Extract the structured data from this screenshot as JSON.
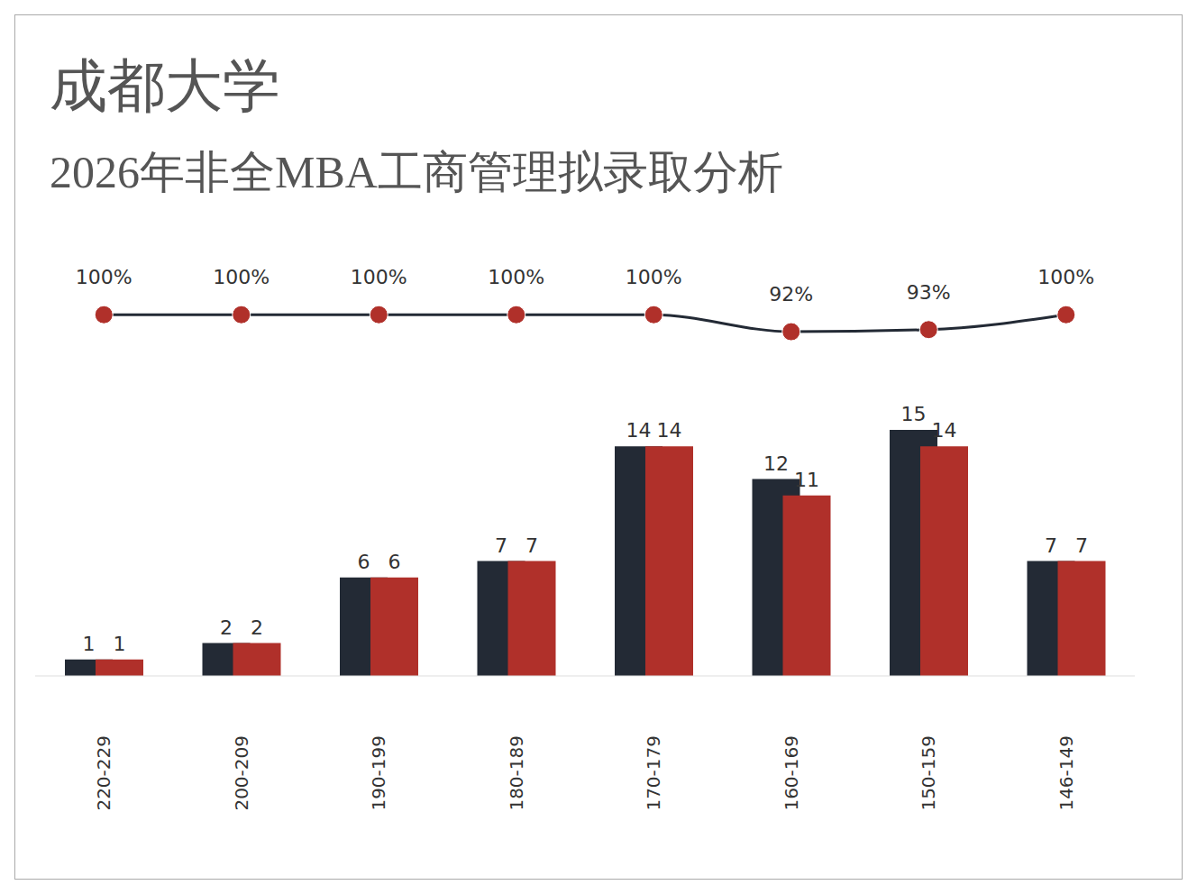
{
  "chart_data": {
    "type": "bar",
    "title": "成都大学",
    "subtitle": "2026年非全MBA工商管理拟录取分析",
    "categories": [
      "220-229",
      "200-209",
      "190-199",
      "180-189",
      "170-179",
      "160-169",
      "150-159",
      "146-149"
    ],
    "series": [
      {
        "type": "bar",
        "color": "#232a35",
        "values": [
          1,
          2,
          6,
          7,
          14,
          12,
          15,
          7
        ]
      },
      {
        "type": "bar",
        "color": "#b0302a",
        "values": [
          1,
          2,
          6,
          7,
          14,
          11,
          14,
          7
        ]
      },
      {
        "type": "line",
        "axis": "y2",
        "color": "#232a35",
        "marker": "circle",
        "values": [
          100,
          100,
          100,
          100,
          100,
          92,
          93,
          100
        ],
        "value_labels": [
          "100%",
          "100%",
          "100%",
          "100%",
          "100%",
          "92%",
          "93%",
          "100%"
        ]
      }
    ],
    "ylim": [
      0,
      25
    ],
    "y2lim": [
      -70,
      123
    ],
    "data_labels": true,
    "tick_labels": "x",
    "grid": false
  }
}
